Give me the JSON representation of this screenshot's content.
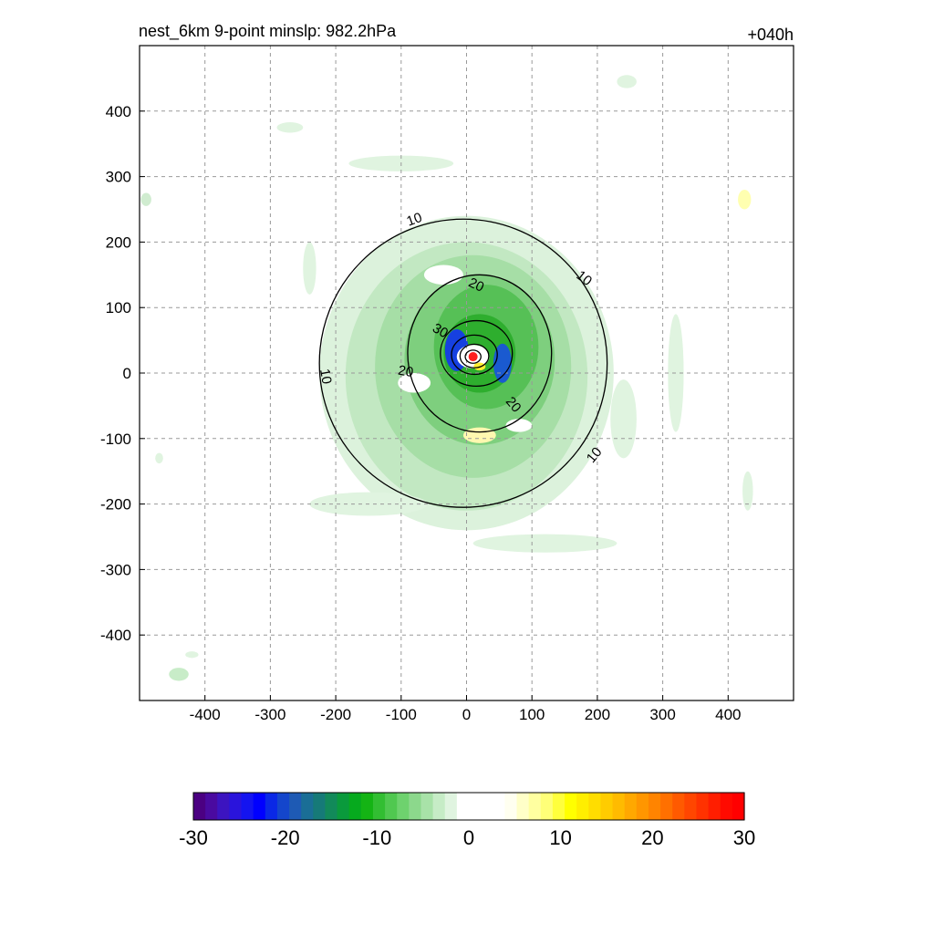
{
  "chart_data": {
    "type": "contour",
    "title_left": "nest_6km  9-point minslp: 982.2hPa",
    "title_right": "+040h",
    "xlim": [
      -500,
      500
    ],
    "ylim": [
      -500,
      500
    ],
    "grid": true,
    "x_ticks": [
      -400,
      -300,
      -200,
      -100,
      0,
      100,
      200,
      300,
      400
    ],
    "x_tick_labels": [
      "-400",
      "-300",
      "-200",
      "-100",
      "0",
      "100",
      "200",
      "300",
      "400"
    ],
    "y_ticks": [
      400,
      300,
      200,
      100,
      0,
      -100,
      -200,
      -300,
      -400
    ],
    "y_tick_labels": [
      "400",
      "300",
      "200",
      "100",
      "0",
      "-100",
      "-200",
      "-300",
      "-400"
    ],
    "contour_levels": [
      10,
      20,
      30
    ],
    "contour_labels": [
      {
        "text": "10",
        "x": -80,
        "y": 235,
        "angle": -20
      },
      {
        "text": "10",
        "x": 180,
        "y": 145,
        "angle": 38
      },
      {
        "text": "10",
        "x": -215,
        "y": -5,
        "angle": 80
      },
      {
        "text": "10",
        "x": 195,
        "y": -125,
        "angle": -50
      },
      {
        "text": "20",
        "x": 15,
        "y": 135,
        "angle": 25
      },
      {
        "text": "20",
        "x": -93,
        "y": 3,
        "angle": 10
      },
      {
        "text": "20",
        "x": 72,
        "y": -48,
        "angle": 50
      },
      {
        "text": "30",
        "x": -40,
        "y": 65,
        "angle": 30
      }
    ],
    "center_marker": {
      "x": 10,
      "y": 25,
      "color": "#ff2020"
    },
    "colorbar": {
      "min": -30,
      "max": 30,
      "tick_values": [
        -30,
        -20,
        -10,
        0,
        10,
        20,
        30
      ],
      "tick_labels": [
        "-30",
        "-20",
        "-10",
        "0",
        "10",
        "20",
        "30"
      ],
      "colors": [
        "#4b0082",
        "#4a0aa0",
        "#3c14c0",
        "#2a14dc",
        "#1414f0",
        "#0000ff",
        "#0a28e6",
        "#1446cc",
        "#1e5ab4",
        "#1a6e96",
        "#167a78",
        "#128a5a",
        "#0a9a3c",
        "#06aa1e",
        "#14b414",
        "#32be32",
        "#50c850",
        "#6ed26e",
        "#8cd88c",
        "#a8e2a8",
        "#c6ecc6",
        "#e0f4e0",
        "#ffffff",
        "#ffffff",
        "#ffffff",
        "#ffffff",
        "#fffff0",
        "#ffffc8",
        "#ffffa0",
        "#ffff78",
        "#ffff3c",
        "#ffff00",
        "#ffee00",
        "#ffdd00",
        "#ffcc00",
        "#ffbb00",
        "#ffa800",
        "#ff9600",
        "#ff8400",
        "#ff7000",
        "#ff5a00",
        "#ff4600",
        "#ff3200",
        "#ff1e00",
        "#ff0a00",
        "#ff0000"
      ]
    }
  }
}
